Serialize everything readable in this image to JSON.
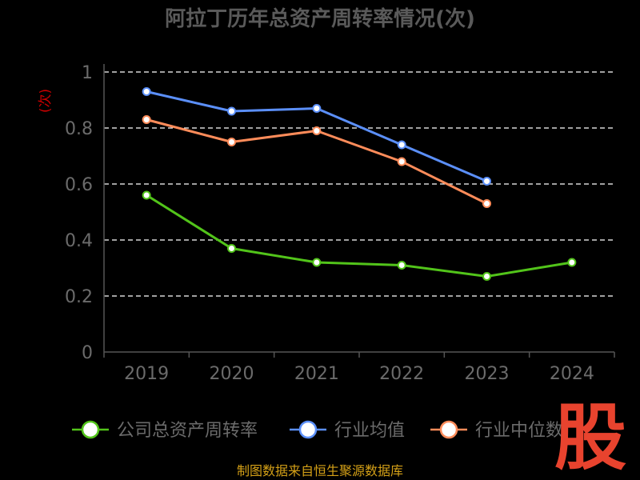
{
  "chart_data": {
    "type": "line",
    "title": "阿拉丁历年总资产周转率情况(次)",
    "ylabel": "(次)",
    "categories": [
      "2019",
      "2020",
      "2021",
      "2022",
      "2023",
      "2024"
    ],
    "ylim": [
      0,
      1
    ],
    "yticks": [
      "0",
      "0.2",
      "0.4",
      "0.6",
      "0.8",
      "1"
    ],
    "grid": true,
    "legend_position": "bottom",
    "series": [
      {
        "name": "公司总资产周转率",
        "color": "#52c41a",
        "values": [
          0.56,
          0.37,
          0.32,
          0.31,
          0.27,
          0.32
        ]
      },
      {
        "name": "行业均值",
        "color": "#5b8ff9",
        "values": [
          0.93,
          0.86,
          0.87,
          0.74,
          0.61,
          null
        ]
      },
      {
        "name": "行业中位数",
        "color": "#ff8c5a",
        "values": [
          0.83,
          0.75,
          0.79,
          0.68,
          0.53,
          null
        ]
      }
    ]
  },
  "source": "制图数据来自恒生聚源数据库",
  "watermark": "股"
}
